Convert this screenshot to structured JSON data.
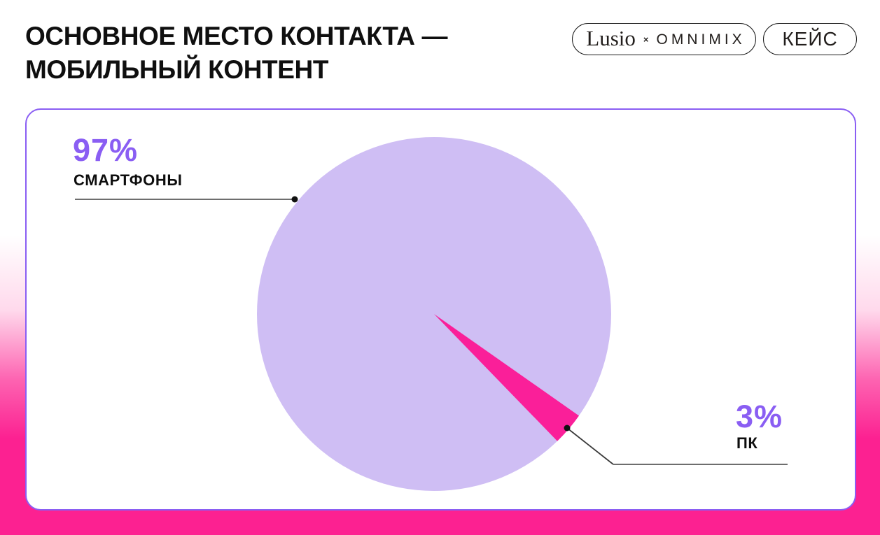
{
  "header": {
    "title_lines": [
      "ОСНОВНОЕ МЕСТО КОНТАКТА —",
      "МОБИЛЬНЫЙ КОНТЕНТ"
    ],
    "badges": {
      "brand": {
        "name": "Lusio",
        "separator": "×",
        "partner": "OMNIMIX"
      },
      "case_label": "КЕЙС"
    }
  },
  "chart_data": {
    "type": "pie",
    "title": "Основное место контакта — мобильный контент",
    "unit": "%",
    "slices": [
      {
        "label": "СМАРТФОНЫ",
        "value": 97,
        "color": "#cfbef4"
      },
      {
        "label": "ПК",
        "value": 3,
        "color": "#fa1f99"
      }
    ],
    "legend_position": "callout-labels",
    "layout": {
      "minor_slice_center_angle_deg_cw_from_top": 130.5,
      "radius_px": 253
    }
  },
  "callouts": {
    "smartphones": {
      "percent": "97%",
      "label": "СМАРТФОНЫ"
    },
    "pc": {
      "percent": "3%",
      "label": "ПК"
    }
  },
  "colors": {
    "accent_purple": "#8a5ef3",
    "card_border": "#8a5ef3",
    "pie_main": "#cfbef4",
    "pie_slice": "#fa1f99",
    "bottom_pink": "#fc2191",
    "title_text": "#0f0f0f",
    "badge_border": "#1c1c1c",
    "leader_line": "#6e6e6e",
    "leader_dot": "#111111"
  }
}
